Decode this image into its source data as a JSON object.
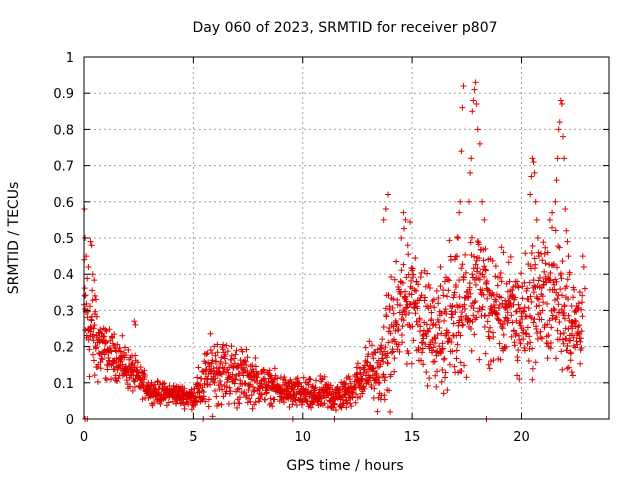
{
  "chart_data": {
    "type": "scatter",
    "title": "Day 060 of 2023, SRMTID for receiver p807",
    "xlabel": "GPS time / hours",
    "ylabel": "SRMTID / TECUs",
    "xlim": [
      0,
      24
    ],
    "ylim": [
      0,
      1
    ],
    "xticks": [
      0,
      5,
      10,
      15,
      20
    ],
    "yticks": [
      0,
      0.1,
      0.2,
      0.3,
      0.4,
      0.5,
      0.6,
      0.7,
      0.8,
      0.9,
      1
    ],
    "xtick_labels": [
      "0",
      "5",
      "10",
      "15",
      "20"
    ],
    "ytick_labels": [
      "0",
      "0.1",
      "0.2",
      "0.3",
      "0.4",
      "0.5",
      "0.6",
      "0.7",
      "0.8",
      "0.9",
      "1"
    ],
    "grid": true,
    "marker": "+",
    "series_color": "#e00000",
    "envelope": {
      "x": [
        0.0,
        0.5,
        1.0,
        1.5,
        2.0,
        2.5,
        3.0,
        3.5,
        4.0,
        4.5,
        5.0,
        5.5,
        6.0,
        6.5,
        7.0,
        7.5,
        8.0,
        8.5,
        9.0,
        9.5,
        10.0,
        10.5,
        11.0,
        11.5,
        12.0,
        12.5,
        13.0,
        13.5,
        14.0,
        14.5,
        15.0,
        15.5,
        16.0,
        16.5,
        17.0,
        17.5,
        18.0,
        18.5,
        19.0,
        19.5,
        20.0,
        20.5,
        21.0,
        21.5,
        22.0,
        22.5,
        22.8
      ],
      "center": [
        0.3,
        0.22,
        0.18,
        0.17,
        0.14,
        0.11,
        0.08,
        0.07,
        0.07,
        0.065,
        0.06,
        0.1,
        0.14,
        0.13,
        0.12,
        0.11,
        0.1,
        0.09,
        0.08,
        0.07,
        0.07,
        0.06,
        0.07,
        0.06,
        0.07,
        0.1,
        0.14,
        0.12,
        0.22,
        0.3,
        0.35,
        0.28,
        0.22,
        0.25,
        0.3,
        0.33,
        0.38,
        0.32,
        0.3,
        0.3,
        0.28,
        0.32,
        0.33,
        0.34,
        0.3,
        0.25,
        0.3
      ],
      "spread": [
        0.12,
        0.1,
        0.05,
        0.04,
        0.04,
        0.03,
        0.02,
        0.02,
        0.02,
        0.02,
        0.02,
        0.06,
        0.07,
        0.06,
        0.06,
        0.05,
        0.04,
        0.03,
        0.03,
        0.03,
        0.03,
        0.03,
        0.03,
        0.03,
        0.03,
        0.04,
        0.05,
        0.06,
        0.12,
        0.12,
        0.12,
        0.1,
        0.08,
        0.12,
        0.14,
        0.12,
        0.12,
        0.1,
        0.1,
        0.1,
        0.1,
        0.12,
        0.12,
        0.12,
        0.12,
        0.08,
        0.1
      ]
    },
    "points": [
      [
        0.02,
        0.58
      ],
      [
        0.05,
        0.5
      ],
      [
        0.1,
        0.45
      ],
      [
        0.2,
        0.42
      ],
      [
        0.3,
        0.49
      ],
      [
        0.35,
        0.48
      ],
      [
        0.4,
        0.4
      ],
      [
        0.5,
        0.34
      ],
      [
        0.55,
        0.33
      ],
      [
        0.05,
        0.0
      ],
      [
        0.15,
        0.0
      ],
      [
        2.3,
        0.27
      ],
      [
        2.35,
        0.26
      ],
      [
        5.45,
        0.0
      ],
      [
        9.55,
        0.0
      ],
      [
        11.45,
        0.0
      ],
      [
        18.4,
        0.0
      ],
      [
        13.7,
        0.55
      ],
      [
        13.8,
        0.58
      ],
      [
        13.9,
        0.62
      ],
      [
        14.5,
        0.5
      ],
      [
        14.6,
        0.57
      ],
      [
        14.7,
        0.55
      ],
      [
        14.8,
        0.48
      ],
      [
        15.0,
        0.41
      ],
      [
        15.2,
        0.38
      ],
      [
        16.3,
        0.42
      ],
      [
        16.5,
        0.38
      ],
      [
        16.8,
        0.28
      ],
      [
        17.0,
        0.37
      ],
      [
        17.05,
        0.45
      ],
      [
        17.1,
        0.5
      ],
      [
        17.15,
        0.57
      ],
      [
        17.2,
        0.6
      ],
      [
        17.25,
        0.74
      ],
      [
        17.3,
        0.86
      ],
      [
        17.35,
        0.92
      ],
      [
        17.6,
        0.6
      ],
      [
        17.65,
        0.68
      ],
      [
        17.7,
        0.72
      ],
      [
        17.75,
        0.85
      ],
      [
        17.8,
        0.88
      ],
      [
        17.85,
        0.91
      ],
      [
        17.9,
        0.93
      ],
      [
        17.95,
        0.87
      ],
      [
        18.0,
        0.8
      ],
      [
        18.1,
        0.76
      ],
      [
        18.2,
        0.6
      ],
      [
        18.3,
        0.55
      ],
      [
        18.35,
        0.47
      ],
      [
        18.5,
        0.15
      ],
      [
        18.55,
        0.14
      ],
      [
        18.6,
        0.16
      ],
      [
        19.8,
        0.12
      ],
      [
        19.9,
        0.11
      ],
      [
        20.4,
        0.62
      ],
      [
        20.45,
        0.67
      ],
      [
        20.5,
        0.72
      ],
      [
        20.55,
        0.71
      ],
      [
        20.6,
        0.68
      ],
      [
        20.65,
        0.6
      ],
      [
        20.7,
        0.55
      ],
      [
        20.75,
        0.5
      ],
      [
        20.8,
        0.45
      ],
      [
        21.0,
        0.37
      ],
      [
        21.1,
        0.43
      ],
      [
        21.2,
        0.46
      ],
      [
        21.3,
        0.55
      ],
      [
        21.4,
        0.57
      ],
      [
        21.55,
        0.6
      ],
      [
        21.6,
        0.66
      ],
      [
        21.65,
        0.72
      ],
      [
        21.7,
        0.8
      ],
      [
        21.75,
        0.82
      ],
      [
        21.8,
        0.88
      ],
      [
        21.85,
        0.87
      ],
      [
        21.9,
        0.78
      ],
      [
        21.95,
        0.72
      ],
      [
        22.0,
        0.58
      ],
      [
        22.05,
        0.52
      ],
      [
        22.1,
        0.49
      ],
      [
        22.15,
        0.45
      ],
      [
        22.2,
        0.4
      ],
      [
        22.3,
        0.13
      ],
      [
        22.35,
        0.12
      ],
      [
        22.8,
        0.45
      ],
      [
        22.85,
        0.42
      ],
      [
        22.9,
        0.36
      ]
    ]
  }
}
